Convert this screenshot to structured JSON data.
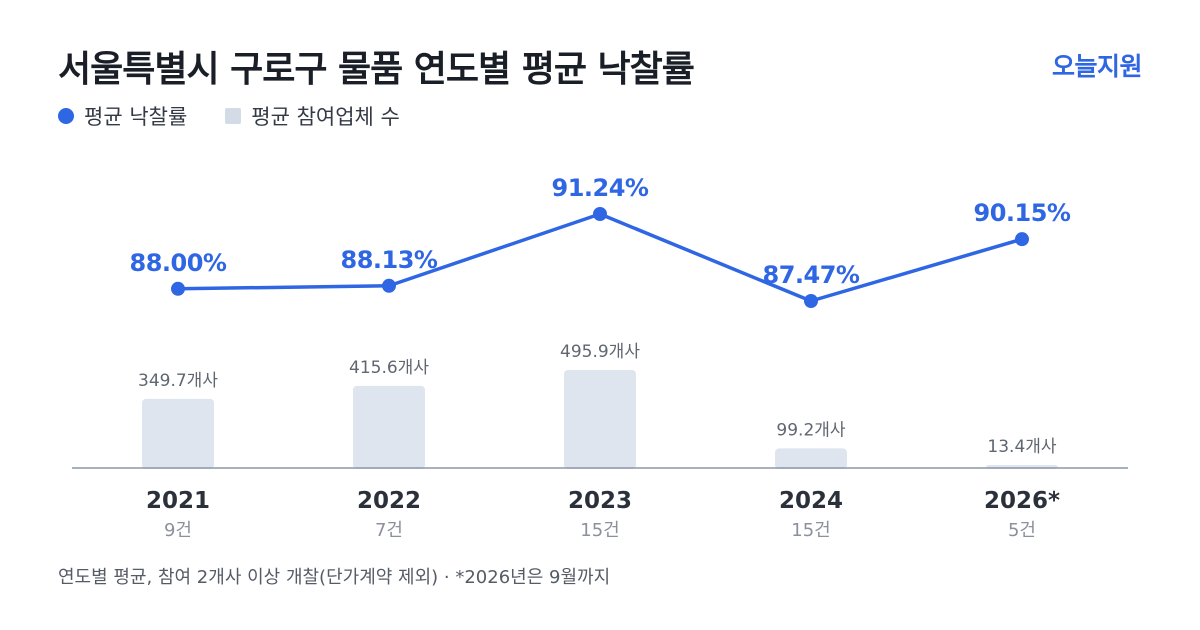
{
  "title": "서울특별시 구로구 물품 연도별 평균 낙찰률",
  "brand": "오늘지원",
  "legend": {
    "rate_label": "평균 낙찰률",
    "bidders_label": "평균 참여업체 수"
  },
  "footnote": "연도별 평균, 참여 2개사 이상 개찰(단가계약 제외) · *2026년은 9월까지",
  "colors": {
    "line": "#2f66e3",
    "bar": "#dfe5ee",
    "axis": "#8b97a8",
    "year_text": "#2b313b",
    "muted_text": "#8a919c"
  },
  "chart_data": {
    "type": "bar+line",
    "categories": [
      "2021",
      "2022",
      "2023",
      "2024",
      "2026*"
    ],
    "counts": [
      "9건",
      "7건",
      "15건",
      "15건",
      "5건"
    ],
    "series": [
      {
        "name": "평균 낙찰률",
        "type": "line",
        "values": [
          88.0,
          88.13,
          91.24,
          87.47,
          90.15
        ],
        "labels": [
          "88.00%",
          "88.13%",
          "91.24%",
          "87.47%",
          "90.15%"
        ]
      },
      {
        "name": "평균 참여업체 수",
        "type": "bar",
        "values": [
          349.7,
          415.6,
          495.9,
          99.2,
          13.4
        ],
        "labels": [
          "349.7개사",
          "415.6개사",
          "495.9개사",
          "99.2개사",
          "13.4개사"
        ]
      }
    ]
  }
}
